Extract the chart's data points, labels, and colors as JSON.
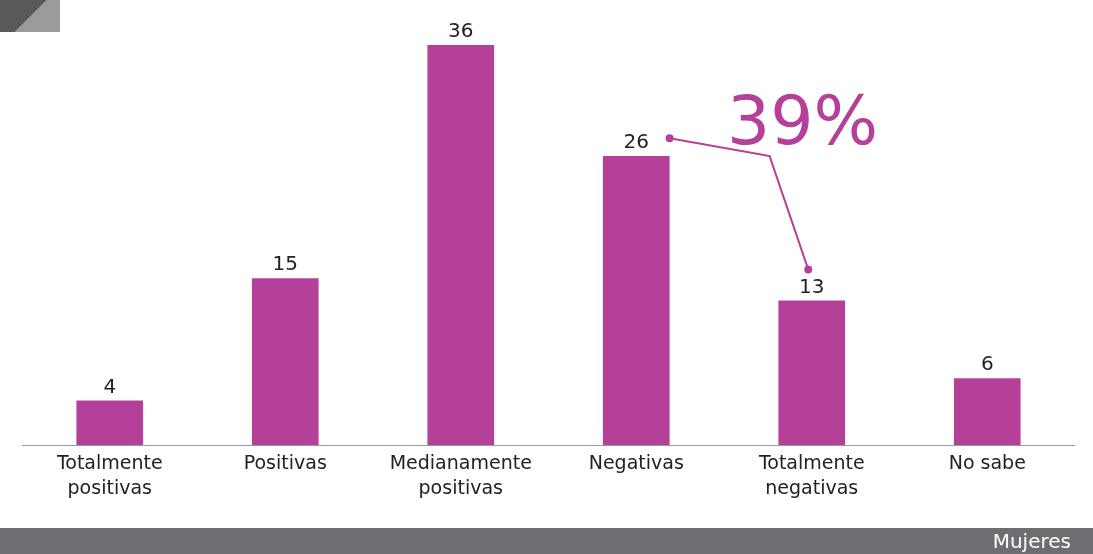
{
  "chart_data": {
    "type": "bar",
    "categories": [
      "Totalmente\npositivas",
      "Positivas",
      "Medianamente\npositivas",
      "Negativas",
      "Totalmente\nnegativas",
      "No sabe"
    ],
    "values": [
      4,
      15,
      36,
      26,
      13,
      6
    ],
    "color": "#b5409a",
    "ylim": [
      0,
      36
    ],
    "data_labels": true,
    "grid": false,
    "legend": false,
    "annotations": [
      "39%",
      "Mujeres"
    ]
  }
}
